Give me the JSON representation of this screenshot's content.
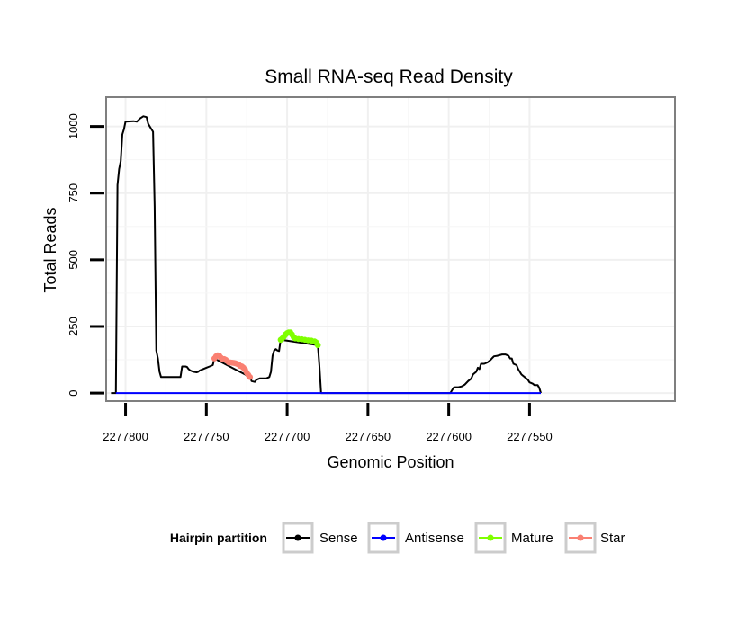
{
  "chart_data": {
    "type": "line",
    "title": "Small RNA-seq Read Density",
    "xlabel": "Genomic Position",
    "ylabel": "Total Reads",
    "x_reversed": true,
    "xlim": [
      2277460,
      2277812
    ],
    "ylim": [
      -30,
      1110
    ],
    "x_ticks": [
      2277800,
      2277750,
      2277700,
      2277650,
      2277600,
      2277550
    ],
    "x_tick_labels": [
      "2277800",
      "2277750",
      "2277700",
      "2277650",
      "2277600",
      "2277550"
    ],
    "y_ticks": [
      0,
      250,
      500,
      750,
      1000
    ],
    "y_tick_labels": [
      "0",
      "250",
      "500",
      "750",
      "1000"
    ],
    "grid": true,
    "legend": {
      "title": "Hairpin partition",
      "position": "bottom",
      "entries": [
        {
          "label": "Sense",
          "color": "#000000"
        },
        {
          "label": "Antisense",
          "color": "#0000ff"
        },
        {
          "label": "Mature",
          "color": "#7fff00"
        },
        {
          "label": "Star",
          "color": "#fa8072"
        }
      ]
    },
    "series": [
      {
        "name": "Sense",
        "color": "#000000",
        "points": [
          [
            2277809,
            0
          ],
          [
            2277806,
            0
          ],
          [
            2277805,
            780
          ],
          [
            2277804,
            840
          ],
          [
            2277803,
            870
          ],
          [
            2277802,
            970
          ],
          [
            2277801,
            990
          ],
          [
            2277800,
            1018
          ],
          [
            2277795,
            1020
          ],
          [
            2277793,
            1018
          ],
          [
            2277791,
            1030
          ],
          [
            2277789,
            1038
          ],
          [
            2277787,
            1035
          ],
          [
            2277786,
            1010
          ],
          [
            2277784,
            990
          ],
          [
            2277783,
            980
          ],
          [
            2277782,
            700
          ],
          [
            2277781,
            160
          ],
          [
            2277780,
            130
          ],
          [
            2277779,
            80
          ],
          [
            2277778,
            60
          ],
          [
            2277772,
            60
          ],
          [
            2277767,
            60
          ],
          [
            2277766,
            60
          ],
          [
            2277765,
            100
          ],
          [
            2277763,
            100
          ],
          [
            2277762,
            98
          ],
          [
            2277761,
            90
          ],
          [
            2277760,
            85
          ],
          [
            2277758,
            80
          ],
          [
            2277756,
            78
          ],
          [
            2277755,
            80
          ],
          [
            2277754,
            85
          ],
          [
            2277752,
            90
          ],
          [
            2277750,
            95
          ],
          [
            2277748,
            100
          ],
          [
            2277746,
            105
          ],
          [
            2277745,
            130
          ],
          [
            2277723,
            60
          ],
          [
            2277722,
            45
          ],
          [
            2277720,
            42
          ],
          [
            2277719,
            50
          ],
          [
            2277717,
            55
          ],
          [
            2277713,
            55
          ],
          [
            2277711,
            60
          ],
          [
            2277710,
            80
          ],
          [
            2277709,
            140
          ],
          [
            2277708,
            160
          ],
          [
            2277707,
            165
          ],
          [
            2277706,
            160
          ],
          [
            2277705,
            158
          ],
          [
            2277704,
            200
          ],
          [
            2277681,
            180
          ],
          [
            2277680,
            100
          ],
          [
            2277679,
            0
          ],
          [
            2277600,
            0
          ],
          [
            2277599,
            0
          ],
          [
            2277598,
            10
          ],
          [
            2277597,
            20
          ],
          [
            2277596,
            22
          ],
          [
            2277594,
            22
          ],
          [
            2277592,
            25
          ],
          [
            2277590,
            32
          ],
          [
            2277588,
            45
          ],
          [
            2277586,
            55
          ],
          [
            2277585,
            70
          ],
          [
            2277583,
            80
          ],
          [
            2277582,
            95
          ],
          [
            2277581,
            90
          ],
          [
            2277580,
            110
          ],
          [
            2277578,
            110
          ],
          [
            2277576,
            115
          ],
          [
            2277574,
            125
          ],
          [
            2277573,
            132
          ],
          [
            2277572,
            138
          ],
          [
            2277570,
            140
          ],
          [
            2277567,
            145
          ],
          [
            2277565,
            145
          ],
          [
            2277563,
            140
          ],
          [
            2277562,
            130
          ],
          [
            2277561,
            130
          ],
          [
            2277560,
            110
          ],
          [
            2277558,
            105
          ],
          [
            2277557,
            90
          ],
          [
            2277555,
            70
          ],
          [
            2277553,
            60
          ],
          [
            2277551,
            50
          ],
          [
            2277550,
            40
          ],
          [
            2277548,
            35
          ],
          [
            2277547,
            30
          ],
          [
            2277545,
            30
          ],
          [
            2277544,
            20
          ],
          [
            2277543,
            0
          ]
        ]
      },
      {
        "name": "Antisense",
        "color": "#0000ff",
        "points": [
          [
            2277806,
            0
          ],
          [
            2277543,
            0
          ]
        ]
      },
      {
        "name": "Mature",
        "color": "#7fff00",
        "points": [
          [
            2277704,
            200
          ],
          [
            2277703,
            205
          ],
          [
            2277702,
            212
          ],
          [
            2277701,
            220
          ],
          [
            2277700,
            225
          ],
          [
            2277699,
            228
          ],
          [
            2277698,
            228
          ],
          [
            2277697,
            220
          ],
          [
            2277696,
            210
          ],
          [
            2277695,
            205
          ],
          [
            2277693,
            203
          ],
          [
            2277691,
            202
          ],
          [
            2277689,
            200
          ],
          [
            2277687,
            198
          ],
          [
            2277685,
            197
          ],
          [
            2277683,
            194
          ],
          [
            2277682,
            190
          ],
          [
            2277681,
            180
          ]
        ]
      },
      {
        "name": "Star",
        "color": "#fa8072",
        "points": [
          [
            2277745,
            130
          ],
          [
            2277744,
            138
          ],
          [
            2277743,
            142
          ],
          [
            2277742,
            140
          ],
          [
            2277741,
            133
          ],
          [
            2277740,
            128
          ],
          [
            2277739,
            128
          ],
          [
            2277738,
            125
          ],
          [
            2277737,
            120
          ],
          [
            2277736,
            115
          ],
          [
            2277735,
            115
          ],
          [
            2277734,
            114
          ],
          [
            2277733,
            113
          ],
          [
            2277732,
            112
          ],
          [
            2277731,
            110
          ],
          [
            2277730,
            107
          ],
          [
            2277729,
            102
          ],
          [
            2277728,
            100
          ],
          [
            2277727,
            95
          ],
          [
            2277726,
            88
          ],
          [
            2277725,
            77
          ],
          [
            2277724,
            68
          ],
          [
            2277723,
            60
          ]
        ]
      }
    ]
  }
}
